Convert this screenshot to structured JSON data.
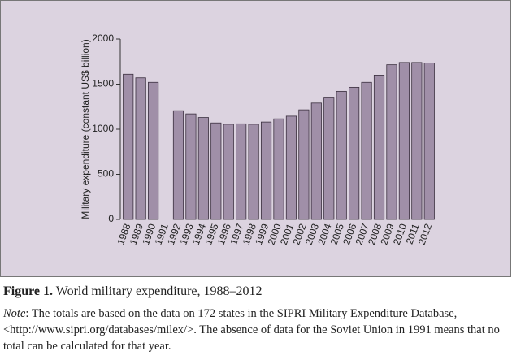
{
  "chart_data": {
    "type": "bar",
    "ylabel": "Military expenditure (constant US$ billion)",
    "categories": [
      "1988",
      "1989",
      "1990",
      "1991",
      "1992",
      "1993",
      "1994",
      "1995",
      "1996",
      "1997",
      "1998",
      "1999",
      "2000",
      "2001",
      "2002",
      "2003",
      "2004",
      "2005",
      "2006",
      "2007",
      "2008",
      "2009",
      "2010",
      "2011",
      "2012"
    ],
    "values": [
      1610,
      1570,
      1520,
      null,
      1205,
      1170,
      1130,
      1070,
      1055,
      1060,
      1055,
      1080,
      1115,
      1145,
      1215,
      1290,
      1355,
      1420,
      1465,
      1520,
      1600,
      1715,
      1740,
      1740,
      1735
    ],
    "color": "#a08fa8",
    "ylim": [
      0,
      2000
    ],
    "yticks": [
      0,
      500,
      1000,
      1500,
      2000
    ],
    "grid": false
  },
  "caption": {
    "label": "Figure 1.",
    "text": "World military expenditure, 1988–2012"
  },
  "note": {
    "label": "Note",
    "text": ": The totals are based on the data on 172 states in the SIPRI Military Expenditure Database, <http://www.sipri.org/databases/milex/>. The absence of data for the Soviet Union in 1991 means that no total can be calculated for that year."
  }
}
